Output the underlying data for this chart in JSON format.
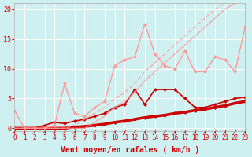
{
  "background_color": "#cff0f0",
  "grid_color": "#ffffff",
  "xlabel": "Vent moyen/en rafales ( km/h )",
  "xlabel_color": "#cc0000",
  "tick_color": "#cc0000",
  "xlim": [
    0,
    23
  ],
  "ylim": [
    -0.5,
    21
  ],
  "yticks": [
    0,
    5,
    10,
    15,
    20
  ],
  "xticks": [
    0,
    1,
    2,
    3,
    4,
    5,
    6,
    7,
    8,
    9,
    10,
    11,
    12,
    13,
    14,
    15,
    16,
    17,
    18,
    19,
    20,
    21,
    22,
    23
  ],
  "series": [
    {
      "x": [
        0,
        1,
        2,
        3,
        4,
        5,
        6,
        7,
        8,
        9,
        10,
        11,
        12,
        13,
        14,
        15,
        16,
        17,
        18,
        19,
        20,
        21,
        22,
        23
      ],
      "y": [
        0,
        0,
        0,
        0,
        0,
        0,
        0.2,
        0.3,
        0.5,
        0.7,
        1.0,
        1.2,
        1.5,
        1.8,
        2.0,
        2.2,
        2.5,
        2.7,
        3.0,
        3.2,
        3.5,
        3.8,
        4.2,
        4.5
      ],
      "color": "#cc0000",
      "lw": 2.5,
      "marker": "D",
      "ms": 2.5,
      "alpha": 1.0
    },
    {
      "x": [
        0,
        1,
        2,
        3,
        4,
        5,
        6,
        7,
        8,
        9,
        10,
        11,
        12,
        13,
        14,
        15,
        16,
        17,
        18,
        19,
        20,
        21,
        22,
        23
      ],
      "y": [
        0,
        0,
        0,
        0.5,
        1.0,
        0.8,
        1.2,
        1.5,
        2.0,
        2.5,
        3.5,
        4.0,
        6.5,
        4.0,
        6.5,
        6.5,
        6.5,
        5.0,
        3.5,
        3.5,
        4.0,
        4.5,
        5.0,
        5.2
      ],
      "color": "#cc0000",
      "lw": 1.2,
      "marker": "D",
      "ms": 2.5,
      "alpha": 1.0
    },
    {
      "x": [
        0,
        1,
        2,
        3,
        4,
        5,
        6,
        7,
        8,
        9,
        10,
        11,
        12,
        13,
        14,
        15,
        16,
        17,
        18,
        19,
        20,
        21,
        22,
        23
      ],
      "y": [
        3.0,
        0,
        0,
        0,
        0.5,
        7.5,
        2.5,
        2.0,
        3.5,
        4.5,
        10.5,
        11.5,
        12.0,
        17.5,
        12.5,
        10.5,
        10.0,
        13.0,
        9.5,
        9.5,
        12.0,
        11.5,
        9.5,
        17.0
      ],
      "color": "#ff9999",
      "lw": 1.0,
      "marker": "D",
      "ms": 2.5,
      "alpha": 1.0
    },
    {
      "x": [
        0,
        1,
        2,
        3,
        4,
        5,
        6,
        7,
        8,
        9,
        10,
        11,
        12,
        13,
        14,
        15,
        16,
        17,
        18,
        19,
        20,
        21,
        22,
        23
      ],
      "y": [
        0,
        0,
        0,
        0,
        0,
        0,
        0.5,
        1.5,
        2.5,
        3.5,
        5.0,
        6.0,
        7.5,
        9.5,
        11.0,
        12.5,
        14.0,
        15.5,
        17.0,
        18.5,
        20.0,
        21.0,
        22.0,
        23.0
      ],
      "color": "#ff9999",
      "lw": 1.0,
      "marker": null,
      "ms": 0,
      "alpha": 0.8,
      "linestyle": "--"
    },
    {
      "x": [
        0,
        1,
        2,
        3,
        4,
        5,
        6,
        7,
        8,
        9,
        10,
        11,
        12,
        13,
        14,
        15,
        16,
        17,
        18,
        19,
        20,
        21,
        22,
        23
      ],
      "y": [
        0,
        0,
        0,
        0,
        0,
        0,
        0,
        0,
        1.0,
        2.0,
        3.5,
        4.5,
        6.0,
        8.0,
        9.5,
        11.0,
        12.5,
        14.0,
        15.5,
        17.0,
        18.5,
        20.0,
        21.0,
        22.5
      ],
      "color": "#ff9999",
      "lw": 1.0,
      "marker": null,
      "ms": 0,
      "alpha": 0.8,
      "linestyle": "-"
    }
  ],
  "arrow_color": "#cc0000",
  "title_color": "#cc0000"
}
